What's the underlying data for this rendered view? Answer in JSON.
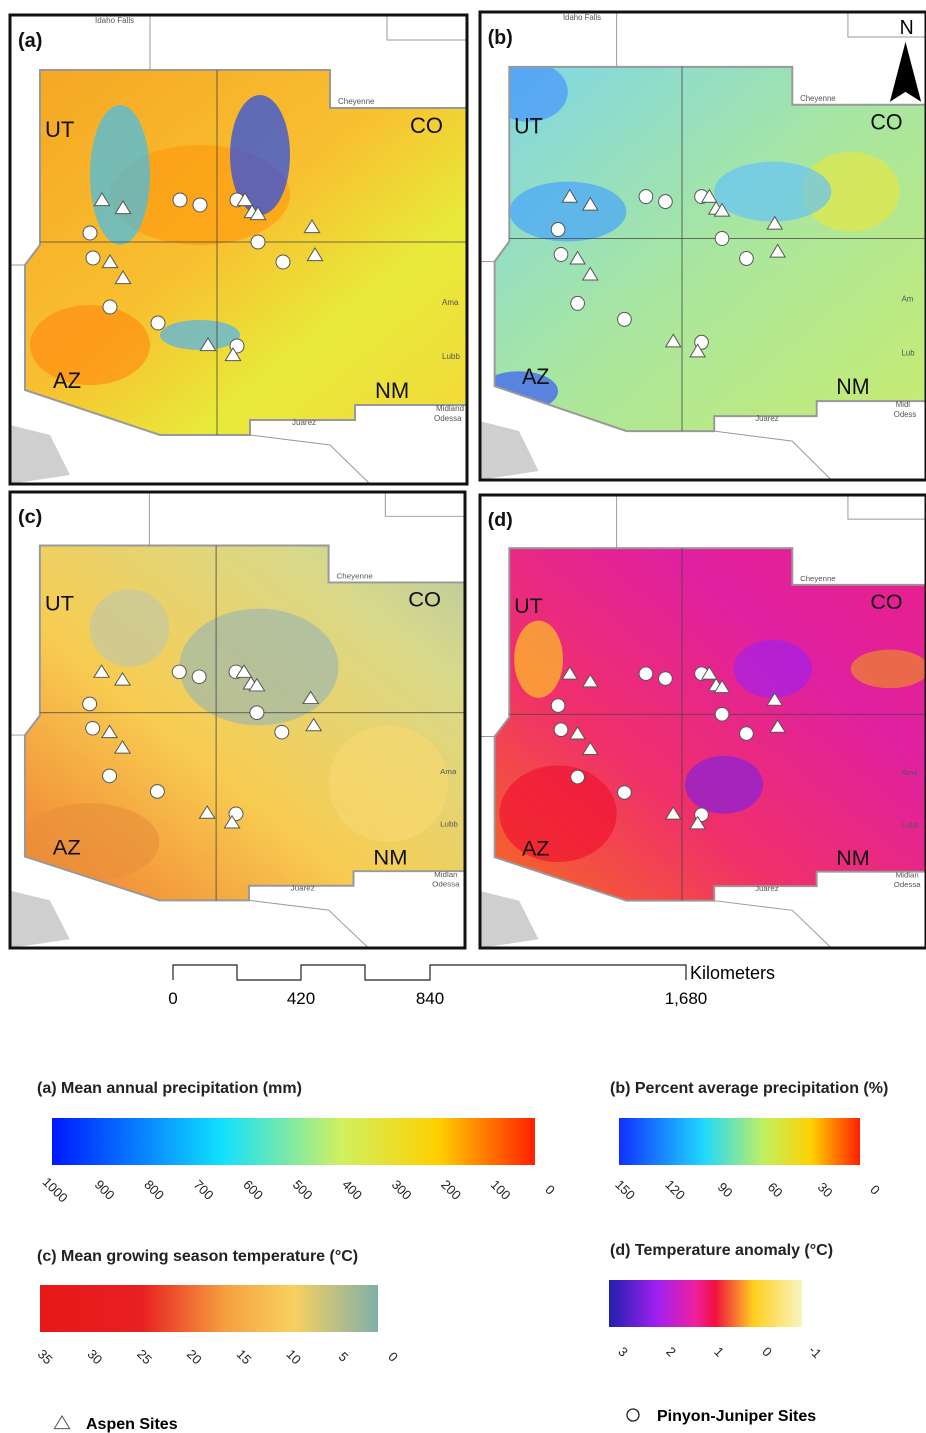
{
  "panels": [
    {
      "label": "(a)",
      "states": {
        "ut": "UT",
        "co": "CO",
        "az": "AZ",
        "nm": "NM"
      },
      "cities": {
        "idaho_falls": "Idaho Falls",
        "cheyenne": "Cheyenne",
        "amarillo": "Ama",
        "lubbock": "Lubb",
        "midland": "Midland",
        "odessa": "Odessa",
        "juarez": "Juarez"
      }
    },
    {
      "label": "(b)",
      "north": "N",
      "states": {
        "ut": "UT",
        "co": "CO",
        "az": "AZ",
        "nm": "NM"
      },
      "cities": {
        "idaho_falls": "Idaho Falls",
        "cheyenne": "Cheyenne",
        "amarillo": "Am",
        "lubbock": "Lub",
        "midland": "Midl",
        "odessa": "Odess",
        "juarez": "Juarez"
      }
    },
    {
      "label": "(c)",
      "states": {
        "ut": "UT",
        "co": "CO",
        "az": "AZ",
        "nm": "NM"
      },
      "cities": {
        "cheyenne": "Cheyenne",
        "amarillo": "Ama",
        "lubbock": "Lubb",
        "midland": "Midlan",
        "odessa": "Odessa",
        "juarez": "Juarez"
      }
    },
    {
      "label": "(d)",
      "states": {
        "ut": "UT",
        "co": "CO",
        "az": "AZ",
        "nm": "NM"
      },
      "cities": {
        "cheyenne": "Cheyenne",
        "amarillo": "Ama",
        "lubbock": "Lubb",
        "midland": "Midlan",
        "odessa": "Odessa",
        "juarez": "Juarez"
      }
    }
  ],
  "scale_bar": {
    "unit": "Kilometers",
    "ticks": [
      "0",
      "420",
      "840",
      "1,680"
    ]
  },
  "legends": [
    {
      "title": "(a) Mean annual precipitation (mm)",
      "ticks": [
        "1000",
        "900",
        "800",
        "700",
        "600",
        "500",
        "400",
        "300",
        "200",
        "100",
        "0"
      ]
    },
    {
      "title": "(b) Percent average precipitation (%)",
      "ticks": [
        "150",
        "120",
        "90",
        "60",
        "30",
        "0"
      ]
    },
    {
      "title": "(c) Mean growing season temperature (°C)",
      "ticks": [
        "35",
        "30",
        "25",
        "20",
        "15",
        "10",
        "5",
        "0"
      ]
    },
    {
      "title": "(d) Temperature anomaly (°C)",
      "ticks": [
        "3",
        "2",
        "1",
        "0",
        "-1"
      ]
    }
  ],
  "site_legend": {
    "aspen": "Aspen Sites",
    "pinyon_juniper": "Pinyon-Juniper Sites"
  }
}
